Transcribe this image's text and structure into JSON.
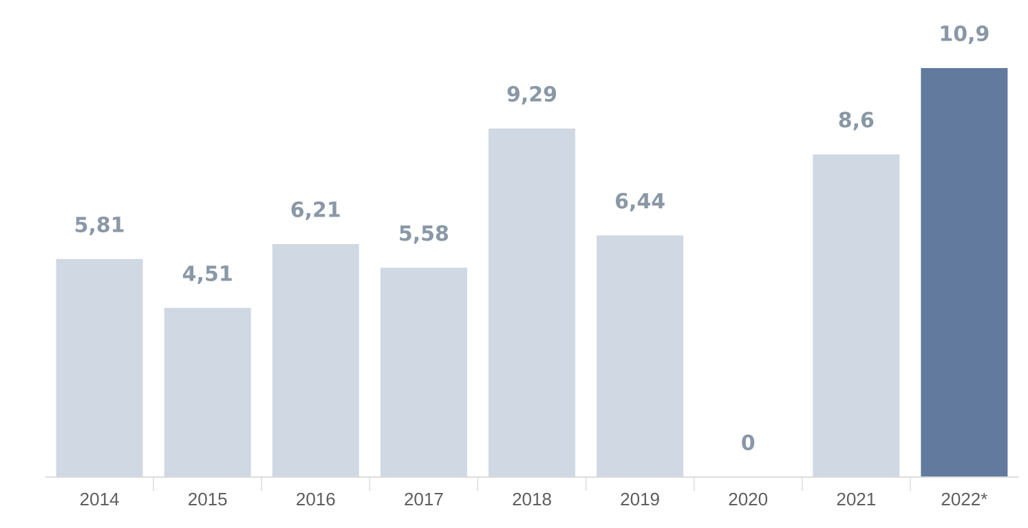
{
  "chart_data": {
    "type": "bar",
    "categories": [
      "2014",
      "2015",
      "2016",
      "2017",
      "2018",
      "2019",
      "2020",
      "2021",
      "2022*"
    ],
    "values": [
      5.81,
      4.51,
      6.21,
      5.58,
      9.29,
      6.44,
      0,
      8.6,
      10.9
    ],
    "value_labels": [
      "5,81",
      "4,51",
      "6,21",
      "5,58",
      "9,29",
      "6,44",
      "0",
      "8,6",
      "10,9"
    ],
    "title": "",
    "xlabel": "",
    "ylabel": "",
    "ylim": [
      0,
      10.9
    ],
    "grid": false,
    "legend": "none",
    "colors": {
      "default_bar": "#d0d8e3",
      "highlight_bar": "#617a9e",
      "value_label": "#8a98a6",
      "tick_label": "#5e5e5e",
      "axis": "#dcdcdc"
    },
    "highlight_index": 8
  }
}
